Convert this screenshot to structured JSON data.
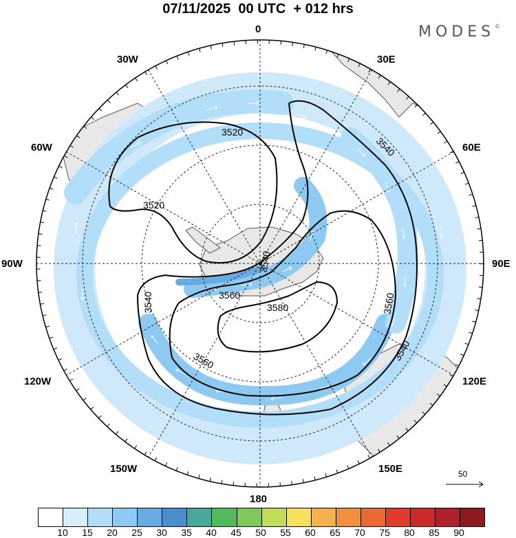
{
  "title": "07/11/2025  00 UTC  + 012 hrs",
  "brand": "MODES",
  "brand_mark": "©",
  "lon_labels": {
    "n0": "0",
    "n30e": "30E",
    "n60e": "60E",
    "n90e": "90E",
    "n120e": "120E",
    "n150e": "150E",
    "n180": "180",
    "n150w": "150W",
    "n120w": "120W",
    "n90w": "90W",
    "n60w": "60W",
    "n30w": "30W"
  },
  "contours": {
    "c3520a": "3520",
    "c3520b": "3520",
    "c3540a": "3540",
    "c3540b": "3540",
    "c3540c": "3540",
    "c3540d": "3540",
    "c3560a": "3560",
    "c3560b": "3560",
    "c3560c": "3560",
    "c3580": "3580"
  },
  "reference_vector": "50",
  "colorbar": {
    "colors": [
      "#ffffff",
      "#d6effc",
      "#b3defa",
      "#8dc9f0",
      "#68abe0",
      "#4a8fcc",
      "#4aa89a",
      "#52b85a",
      "#80c85a",
      "#c2dc5a",
      "#f8df5c",
      "#f5b24a",
      "#f0903e",
      "#ea6a34",
      "#df3c2e",
      "#cc2a2a",
      "#b0202a",
      "#8e1a20"
    ],
    "labels": [
      "10",
      "15",
      "20",
      "25",
      "30",
      "35",
      "40",
      "45",
      "50",
      "55",
      "60",
      "65",
      "70",
      "75",
      "80",
      "85",
      "90"
    ]
  }
}
